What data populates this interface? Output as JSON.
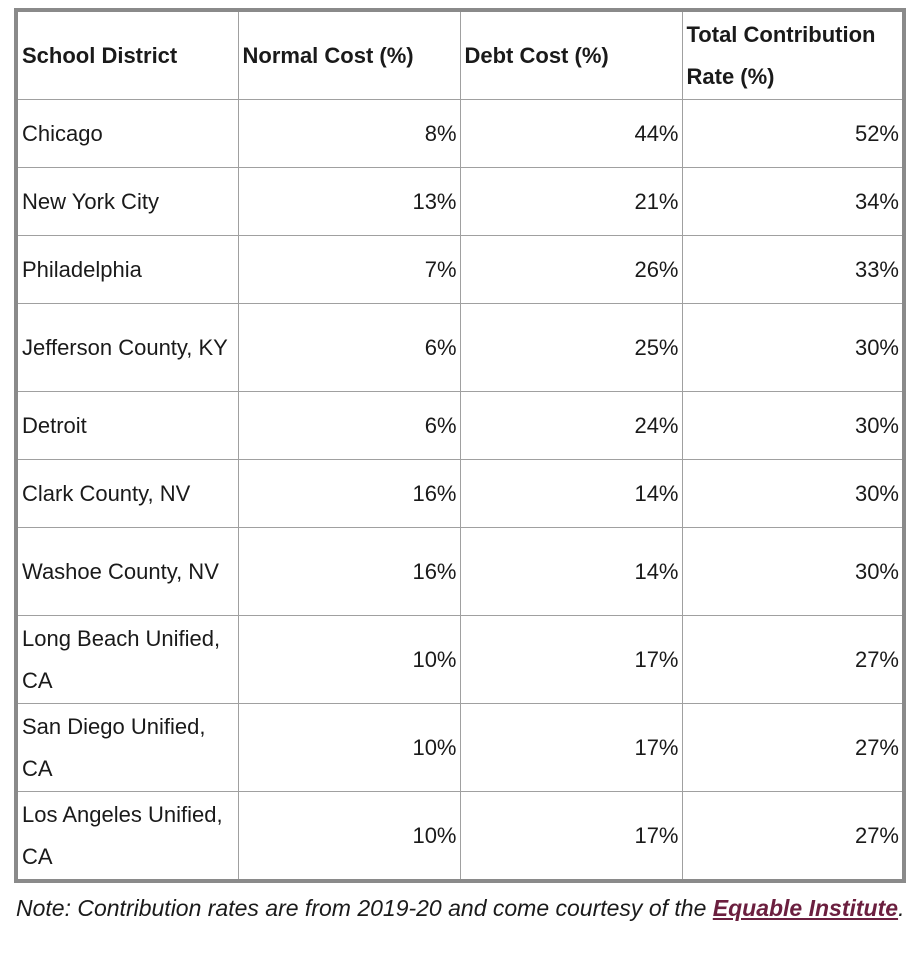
{
  "table": {
    "headers": [
      "School District",
      "Normal Cost (%)",
      "Debt Cost (%)",
      "Total Contribution Rate (%)"
    ],
    "rows": [
      [
        "Chicago",
        "8%",
        "44%",
        "52%"
      ],
      [
        "New York City",
        "13%",
        "21%",
        "34%"
      ],
      [
        "Philadelphia",
        "7%",
        "26%",
        "33%"
      ],
      [
        "Jefferson County, KY",
        "6%",
        "25%",
        "30%"
      ],
      [
        "Detroit",
        "6%",
        "24%",
        "30%"
      ],
      [
        "Clark County, NV",
        "16%",
        "14%",
        "30%"
      ],
      [
        "Washoe County, NV",
        "16%",
        "14%",
        "30%"
      ],
      [
        "Long Beach Unified, CA",
        "10%",
        "17%",
        "27%"
      ],
      [
        "San Diego Unified, CA",
        "10%",
        "17%",
        "27%"
      ],
      [
        "Los Angeles Unified, CA",
        "10%",
        "17%",
        "27%"
      ]
    ]
  },
  "note": {
    "text": "Note: Contribution rates are from 2019-20 and come courtesy of the ",
    "link": "Equable Institute",
    "end": "."
  }
}
